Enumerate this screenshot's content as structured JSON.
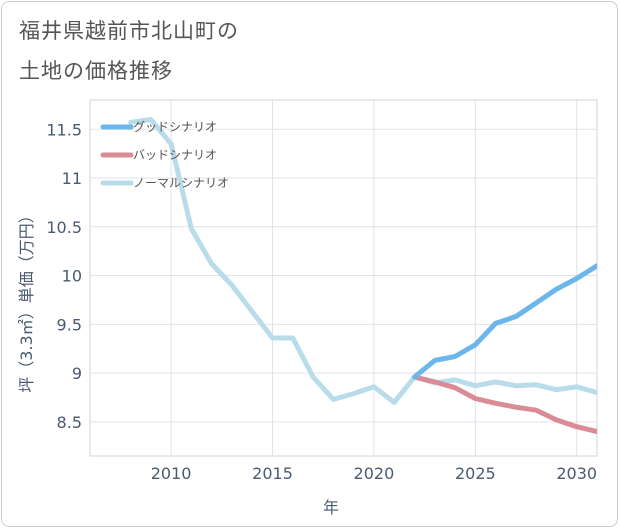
{
  "title_lines": [
    "福井県越前市北山町の",
    "土地の価格推移"
  ],
  "chart_data": {
    "type": "line",
    "title": "福井県越前市北山町の土地の価格推移",
    "xlabel": "年",
    "ylabel": "坪（3.3㎡）単価（万円）",
    "xlim": [
      2006,
      2031
    ],
    "ylim": [
      8.15,
      11.8
    ],
    "x_ticks": [
      2010,
      2015,
      2020,
      2025,
      2030
    ],
    "x_tick_labels": [
      "2010",
      "2015",
      "2020",
      "2025",
      "2030"
    ],
    "y_ticks": [
      8.5,
      9,
      9.5,
      10,
      10.5,
      11,
      11.5
    ],
    "y_tick_labels": [
      "8.5",
      "9",
      "9.5",
      "10",
      "10.5",
      "11",
      "11.5"
    ],
    "grid": true,
    "legend_position": "top-left",
    "series": [
      {
        "name": "グッドシナリオ",
        "color": "#6bb6ea",
        "x": [
          2022,
          2023,
          2024,
          2025,
          2026,
          2027,
          2028,
          2029,
          2030,
          2031
        ],
        "y": [
          8.96,
          9.13,
          9.17,
          9.29,
          9.51,
          9.58,
          9.72,
          9.86,
          9.97,
          10.1
        ]
      },
      {
        "name": "バッドシナリオ",
        "color": "#d98c95",
        "x": [
          2022,
          2023,
          2024,
          2025,
          2026,
          2027,
          2028,
          2029,
          2030,
          2031
        ],
        "y": [
          8.96,
          8.91,
          8.85,
          8.74,
          8.69,
          8.65,
          8.62,
          8.52,
          8.45,
          8.4
        ]
      },
      {
        "name": "ノーマルシナリオ",
        "color": "#b9dcea",
        "x": [
          2008,
          2009,
          2010,
          2011,
          2012,
          2013,
          2014,
          2015,
          2016,
          2017,
          2018,
          2019,
          2020,
          2021,
          2022,
          2023,
          2024,
          2025,
          2026,
          2027,
          2028,
          2029,
          2030,
          2031
        ],
        "y": [
          11.57,
          11.6,
          11.35,
          10.48,
          10.12,
          9.9,
          9.63,
          9.36,
          9.36,
          8.96,
          8.73,
          8.79,
          8.86,
          8.7,
          8.96,
          8.9,
          8.93,
          8.87,
          8.91,
          8.87,
          8.88,
          8.83,
          8.86,
          8.8
        ]
      }
    ]
  }
}
